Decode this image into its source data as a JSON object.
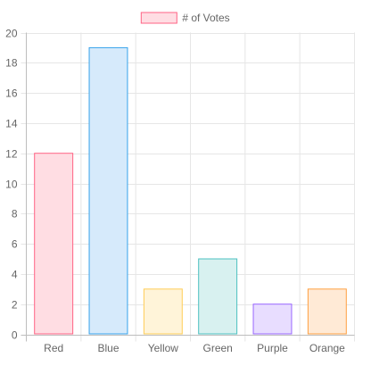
{
  "chart_data": {
    "type": "bar",
    "categories": [
      "Red",
      "Blue",
      "Yellow",
      "Green",
      "Purple",
      "Orange"
    ],
    "series": [
      {
        "name": "# of Votes",
        "values": [
          12,
          19,
          3,
          5,
          2,
          3
        ]
      }
    ],
    "ylim": [
      0,
      20
    ],
    "yticks": [
      0,
      2,
      4,
      6,
      8,
      10,
      12,
      14,
      16,
      18,
      20
    ],
    "grid": true,
    "legend_position": "top-center",
    "colors": {
      "fills": [
        "#ffdde3",
        "#d6eafb",
        "#fff4d9",
        "#d8f1f0",
        "#e8ddff",
        "#ffead6"
      ],
      "borders": [
        "#ff6384",
        "#36a2eb",
        "#ffcd56",
        "#4bc0c0",
        "#9966ff",
        "#ff9f40"
      ],
      "legend_fill": "#ffdde3",
      "legend_border": "#ff6384",
      "grid": "#e6e6e6",
      "axis": "#bdbdbd",
      "text": "#666666"
    }
  }
}
